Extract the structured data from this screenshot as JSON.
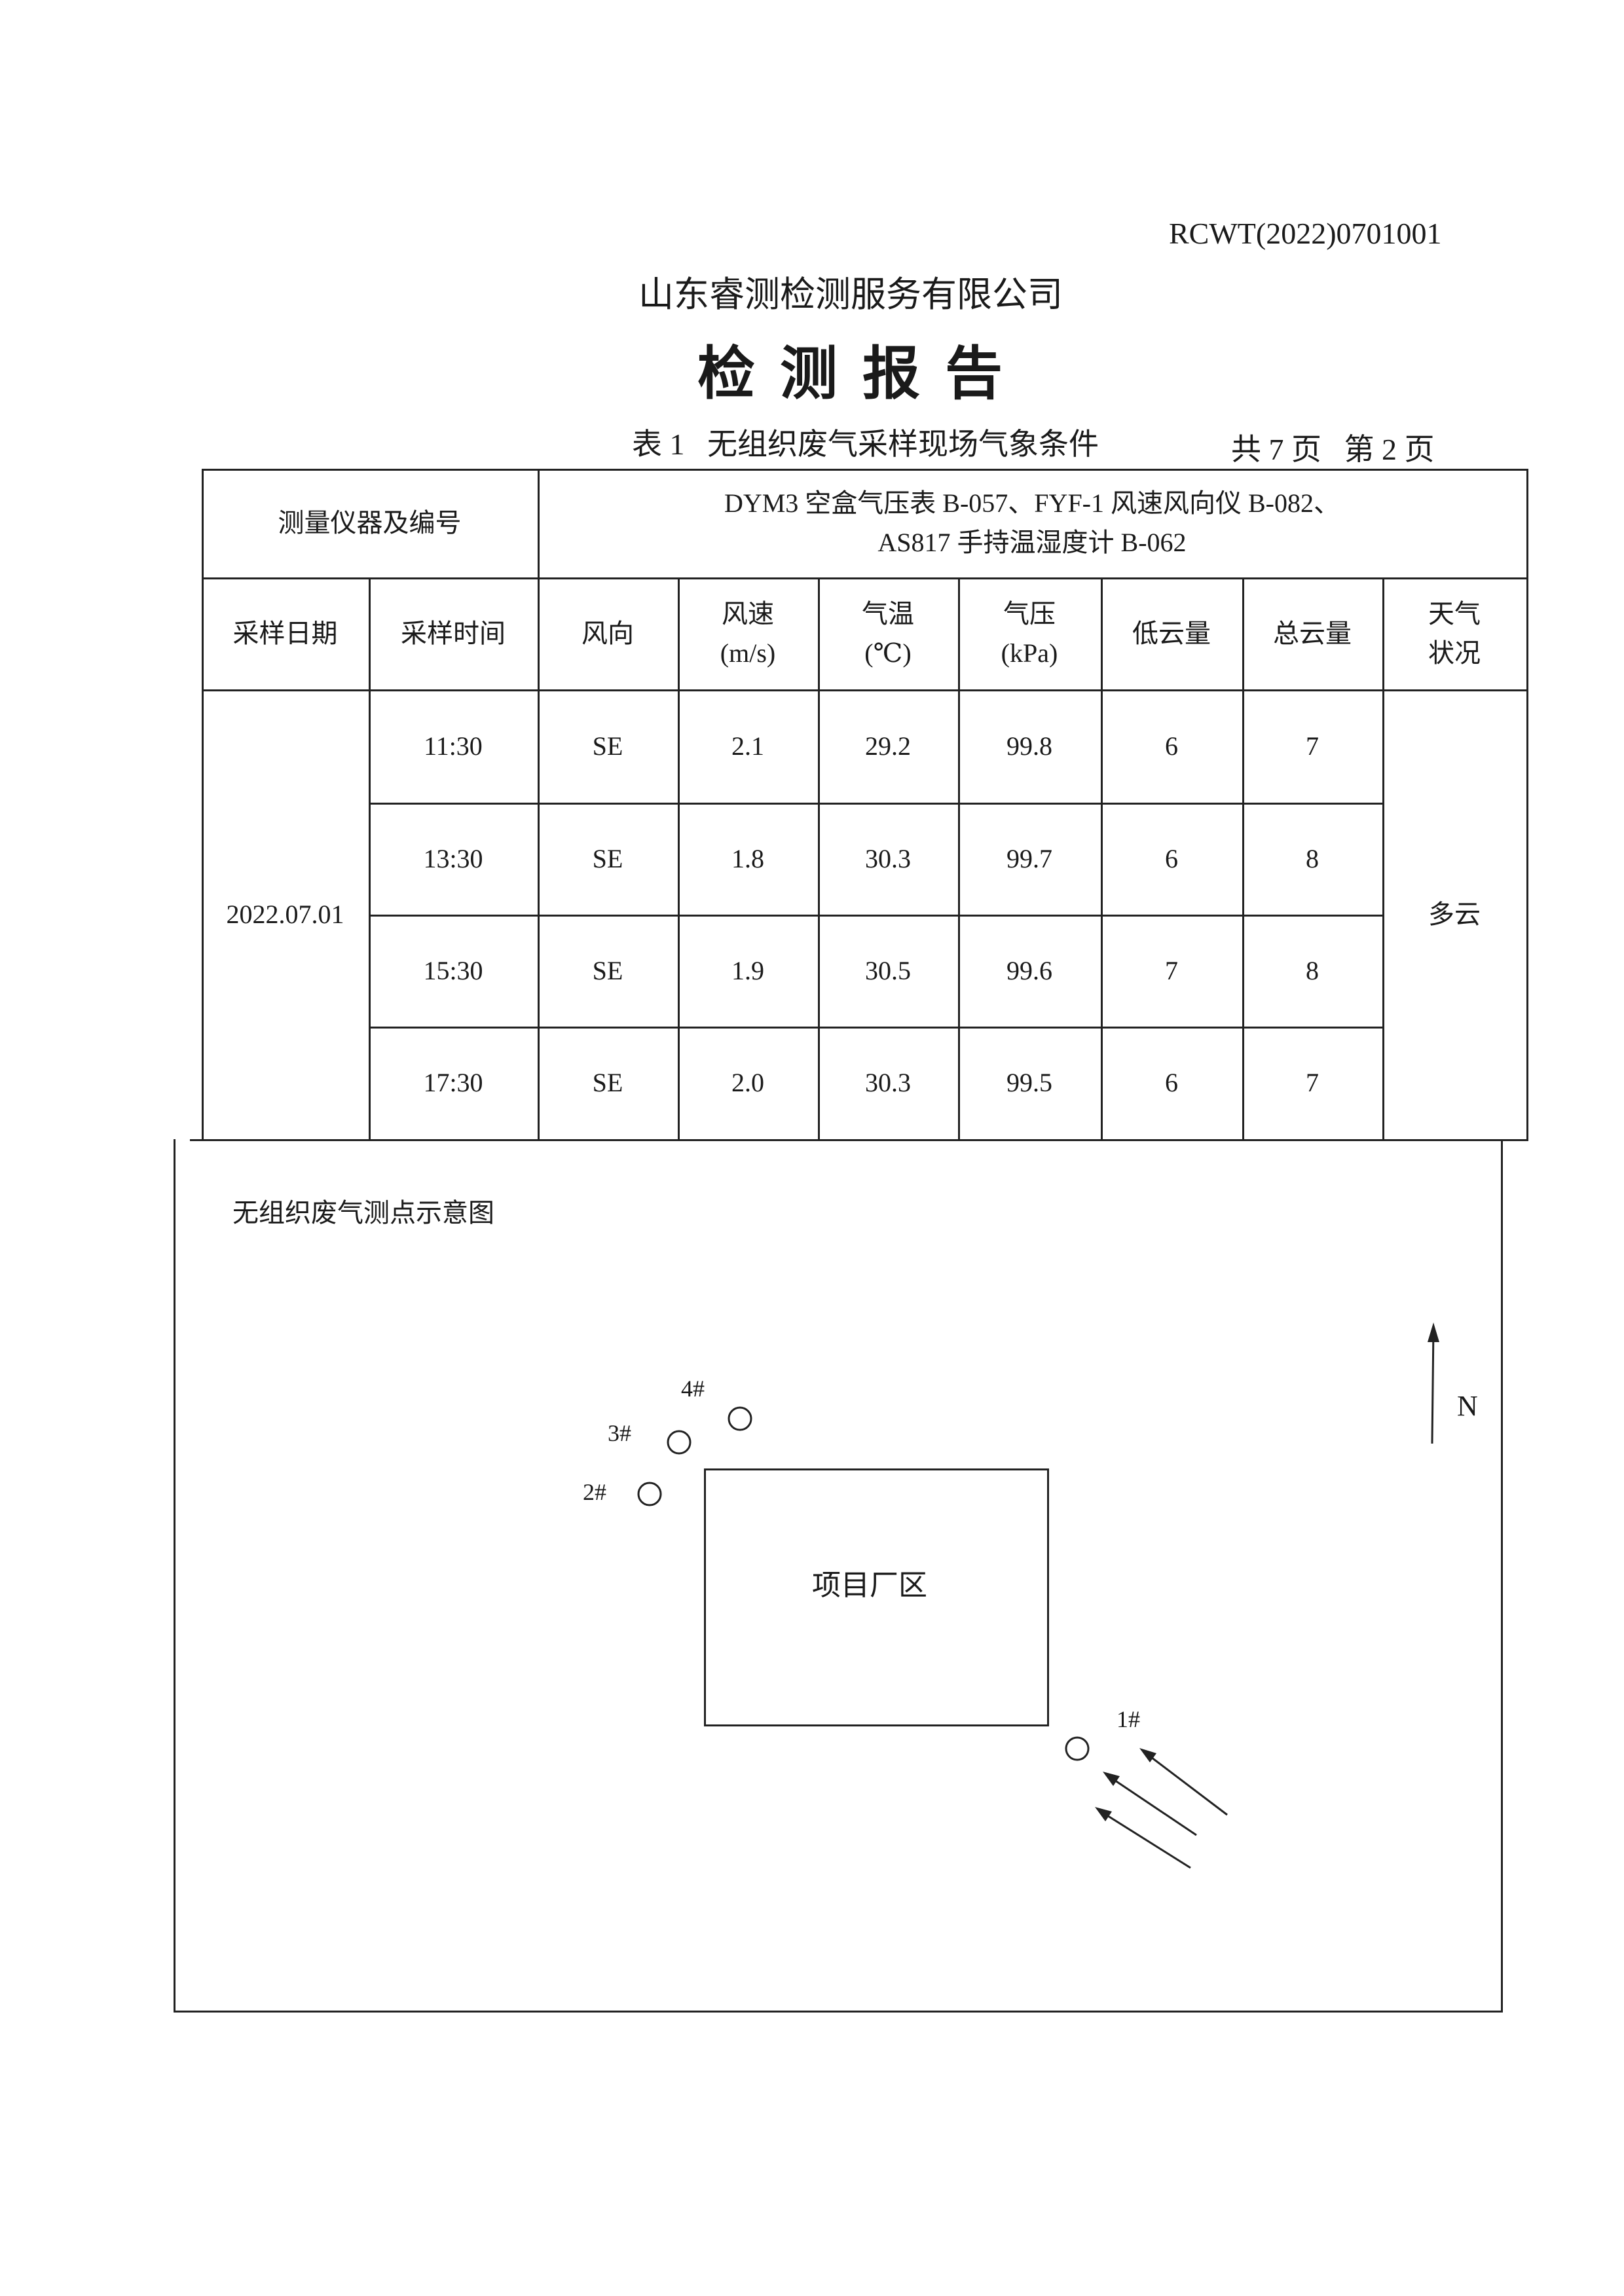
{
  "report_no": "RCWT(2022)0701001",
  "company": "山东睿测检测服务有限公司",
  "title": "检 测 报 告",
  "table_caption": "表 1   无组织废气采样现场气象条件",
  "page_info": "共 7 页   第 2 页",
  "instruments": {
    "label": "测量仪器及编号",
    "line1": "DYM3 空盒气压表 B-057、FYF-1 风速风向仪 B-082、",
    "line2": "AS817  手持温湿度计 B-062"
  },
  "headers": [
    "采样日期",
    "采样时间",
    "风向",
    "风速\n(m/s)",
    "气温\n(℃)",
    "气压\n(kPa)",
    "低云量",
    "总云量",
    "天气\n状况"
  ],
  "date": "2022.07.01",
  "weather": "多云",
  "rows": [
    {
      "time": "11:30",
      "dir": "SE",
      "speed": "2.1",
      "temp": "29.2",
      "pressure": "99.8",
      "low_cloud": "6",
      "total_cloud": "7"
    },
    {
      "time": "13:30",
      "dir": "SE",
      "speed": "1.8",
      "temp": "30.3",
      "pressure": "99.7",
      "low_cloud": "6",
      "total_cloud": "8"
    },
    {
      "time": "15:30",
      "dir": "SE",
      "speed": "1.9",
      "temp": "30.5",
      "pressure": "99.6",
      "low_cloud": "7",
      "total_cloud": "8"
    },
    {
      "time": "17:30",
      "dir": "SE",
      "speed": "2.0",
      "temp": "30.3",
      "pressure": "99.5",
      "low_cloud": "6",
      "total_cloud": "7"
    }
  ],
  "diagram": {
    "title": "无组织废气测点示意图",
    "plant_label": "项目厂区",
    "north_label": "N",
    "points": [
      "1#",
      "2#",
      "3#",
      "4#"
    ]
  }
}
